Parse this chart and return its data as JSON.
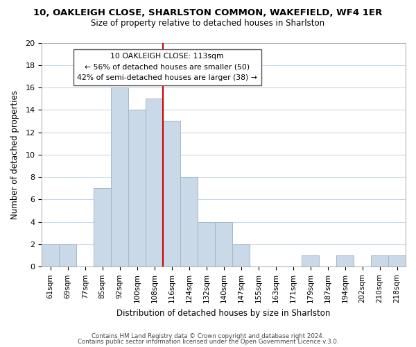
{
  "title_line1": "10, OAKLEIGH CLOSE, SHARLSTON COMMON, WAKEFIELD, WF4 1ER",
  "title_line2": "Size of property relative to detached houses in Sharlston",
  "xlabel": "Distribution of detached houses by size in Sharlston",
  "ylabel": "Number of detached properties",
  "bin_labels": [
    "61sqm",
    "69sqm",
    "77sqm",
    "85sqm",
    "92sqm",
    "100sqm",
    "108sqm",
    "116sqm",
    "124sqm",
    "132sqm",
    "140sqm",
    "147sqm",
    "155sqm",
    "163sqm",
    "171sqm",
    "179sqm",
    "187sqm",
    "194sqm",
    "202sqm",
    "210sqm",
    "218sqm"
  ],
  "bar_heights": [
    2,
    2,
    0,
    7,
    16,
    14,
    15,
    13,
    8,
    4,
    4,
    2,
    0,
    0,
    0,
    1,
    0,
    1,
    0,
    1,
    1
  ],
  "bar_color": "#c9d9e8",
  "bar_edge_color": "#a0b8cc",
  "vline_x": 6.5,
  "vline_color": "#cc0000",
  "ylim": [
    0,
    20
  ],
  "yticks": [
    0,
    2,
    4,
    6,
    8,
    10,
    12,
    14,
    16,
    18,
    20
  ],
  "annotation_title": "10 OAKLEIGH CLOSE: 113sqm",
  "annotation_line1": "← 56% of detached houses are smaller (50)",
  "annotation_line2": "42% of semi-detached houses are larger (38) →",
  "annotation_box_color": "#ffffff",
  "annotation_box_edge": "#555555",
  "footer_line1": "Contains HM Land Registry data © Crown copyright and database right 2024.",
  "footer_line2": "Contains public sector information licensed under the Open Government Licence v.3.0.",
  "bg_color": "#ffffff",
  "grid_color": "#c8d8e8"
}
